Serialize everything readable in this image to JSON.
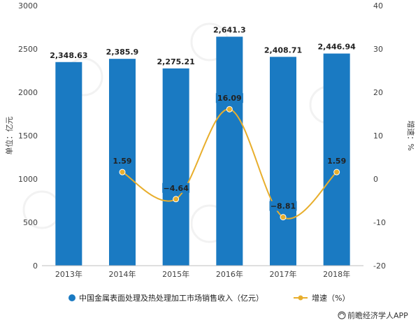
{
  "chart_data": {
    "type": "bar",
    "categories": [
      "2013年",
      "2014年",
      "2015年",
      "2016年",
      "2017年",
      "2018年"
    ],
    "series": [
      {
        "name": "中国金属表面处理及热处理加工市场销售收入（亿元）",
        "type": "bar",
        "axis": "left",
        "values": [
          2348.63,
          2385.9,
          2275.21,
          2641.3,
          2408.71,
          2446.94
        ],
        "labels": [
          "2,348.63",
          "2,385.9",
          "2,275.21",
          "2,641.3",
          "2,408.71",
          "2,446.94"
        ]
      },
      {
        "name": "增速（%）",
        "type": "line",
        "axis": "right",
        "values": [
          null,
          1.59,
          -4.64,
          16.09,
          -8.81,
          1.59
        ],
        "labels": [
          "",
          "1.59",
          "−4.64",
          "16.09",
          "−8.81",
          "1.59"
        ]
      }
    ],
    "ylabel": "单位：亿元",
    "y2label": "增速：%",
    "ylim": [
      0,
      3000
    ],
    "y2lim": [
      -20,
      40
    ],
    "yticks": [
      0,
      500,
      1000,
      1500,
      2000,
      2500,
      3000
    ],
    "y2ticks": [
      -20,
      -10,
      0,
      10,
      20,
      30,
      40
    ],
    "grid": false,
    "legend_position": "bottom",
    "colors": {
      "bar": "#1a7ac2",
      "line": "#e8ae2c"
    }
  },
  "credit": "前瞻经济学人APP"
}
